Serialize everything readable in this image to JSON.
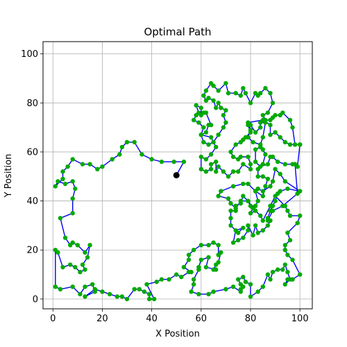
{
  "chart_data": {
    "type": "line",
    "title": "Optimal Path",
    "xlabel": "X Position",
    "ylabel": "Y Position",
    "xlim": [
      -4,
      105
    ],
    "ylim": [
      -4,
      105
    ],
    "xticks": [
      0,
      20,
      40,
      60,
      80,
      100
    ],
    "yticks": [
      0,
      20,
      40,
      60,
      80,
      100
    ],
    "grid": true,
    "colors": {
      "path": "#0000ee",
      "points": "#00aa00",
      "grid": "#b0b0b0",
      "start": "#000000"
    },
    "start_point": [
      50,
      50.5
    ],
    "path": [
      [
        50,
        50.5
      ],
      [
        53,
        56
      ],
      [
        49,
        56
      ],
      [
        44,
        56
      ],
      [
        40,
        57
      ],
      [
        36,
        59
      ],
      [
        33,
        64
      ],
      [
        30,
        64
      ],
      [
        28,
        62
      ],
      [
        27,
        59
      ],
      [
        24,
        57
      ],
      [
        20,
        54
      ],
      [
        18,
        53
      ],
      [
        15,
        55
      ],
      [
        12,
        55
      ],
      [
        8,
        57
      ],
      [
        6,
        54
      ],
      [
        4,
        52
      ],
      [
        4,
        49
      ],
      [
        1,
        46
      ],
      [
        2,
        48
      ],
      [
        5,
        47
      ],
      [
        8,
        48
      ],
      [
        9,
        45
      ],
      [
        8,
        41
      ],
      [
        8,
        35
      ],
      [
        3,
        33
      ],
      [
        5,
        25
      ],
      [
        7,
        22
      ],
      [
        8,
        23
      ],
      [
        10,
        22
      ],
      [
        13,
        19
      ],
      [
        15,
        22
      ],
      [
        14,
        17
      ],
      [
        12,
        14
      ],
      [
        13,
        12
      ],
      [
        11,
        11
      ],
      [
        9,
        13
      ],
      [
        7,
        14
      ],
      [
        4,
        13
      ],
      [
        2,
        19
      ],
      [
        1,
        20
      ],
      [
        1,
        5
      ],
      [
        3,
        4
      ],
      [
        8,
        5
      ],
      [
        11,
        2
      ],
      [
        13,
        5
      ],
      [
        16,
        6
      ],
      [
        17,
        3
      ],
      [
        13,
        1
      ],
      [
        17,
        4
      ],
      [
        20,
        3
      ],
      [
        23,
        2
      ],
      [
        26,
        1
      ],
      [
        28,
        1
      ],
      [
        30,
        0
      ],
      [
        33,
        4
      ],
      [
        35,
        4
      ],
      [
        37,
        3
      ],
      [
        39,
        2
      ],
      [
        39,
        0
      ],
      [
        41,
        0
      ],
      [
        38,
        6
      ],
      [
        42,
        7
      ],
      [
        44,
        8
      ],
      [
        47,
        8
      ],
      [
        50,
        10
      ],
      [
        52,
        9
      ],
      [
        55,
        11
      ],
      [
        56,
        11
      ],
      [
        53,
        13
      ],
      [
        55,
        16
      ],
      [
        55,
        18
      ],
      [
        57,
        20
      ],
      [
        60,
        22
      ],
      [
        63,
        22
      ],
      [
        65,
        23
      ],
      [
        67,
        22
      ],
      [
        67,
        18
      ],
      [
        68,
        19
      ],
      [
        67,
        15
      ],
      [
        66,
        14
      ],
      [
        65,
        12
      ],
      [
        66,
        12
      ],
      [
        62,
        13
      ],
      [
        63,
        17
      ],
      [
        60,
        16
      ],
      [
        59,
        13
      ],
      [
        59,
        12
      ],
      [
        57,
        8
      ],
      [
        57,
        6
      ],
      [
        56,
        3
      ],
      [
        59,
        2
      ],
      [
        63,
        2
      ],
      [
        65,
        3
      ],
      [
        70,
        4
      ],
      [
        73,
        5
      ],
      [
        76,
        3
      ],
      [
        76,
        4
      ],
      [
        77,
        5
      ],
      [
        76,
        6
      ],
      [
        75,
        8
      ],
      [
        77,
        9
      ],
      [
        78,
        7
      ],
      [
        80,
        6
      ],
      [
        80,
        1
      ],
      [
        83,
        3
      ],
      [
        85,
        5
      ],
      [
        87,
        10
      ],
      [
        88,
        8
      ],
      [
        89,
        11
      ],
      [
        91,
        12
      ],
      [
        93,
        12
      ],
      [
        94,
        14
      ],
      [
        95,
        11
      ],
      [
        96,
        8
      ],
      [
        94,
        6
      ],
      [
        95,
        8
      ],
      [
        97,
        8
      ],
      [
        100,
        10
      ],
      [
        97,
        16
      ],
      [
        95,
        18
      ],
      [
        94,
        20
      ],
      [
        94,
        22
      ],
      [
        96,
        24
      ],
      [
        95,
        27
      ],
      [
        99,
        31
      ],
      [
        100,
        34
      ],
      [
        96,
        34
      ],
      [
        95,
        36
      ],
      [
        94,
        38
      ],
      [
        90,
        42
      ],
      [
        88,
        38
      ],
      [
        85,
        32
      ],
      [
        84,
        34
      ],
      [
        82,
        36
      ],
      [
        80,
        35
      ],
      [
        81,
        37
      ],
      [
        79,
        40
      ],
      [
        77,
        42
      ],
      [
        76,
        39
      ],
      [
        74,
        38
      ],
      [
        74,
        36
      ],
      [
        72,
        36
      ],
      [
        72,
        33
      ],
      [
        72,
        30
      ],
      [
        75,
        27
      ],
      [
        77,
        29
      ],
      [
        74,
        28
      ],
      [
        73,
        23
      ],
      [
        75,
        24
      ],
      [
        77,
        25
      ],
      [
        79,
        28
      ],
      [
        79,
        30
      ],
      [
        81,
        26
      ],
      [
        82,
        30
      ],
      [
        83,
        27
      ],
      [
        85,
        28
      ],
      [
        87,
        30
      ],
      [
        88,
        32
      ],
      [
        87,
        33
      ],
      [
        88,
        36
      ],
      [
        89,
        38
      ],
      [
        90,
        40
      ],
      [
        91,
        43
      ],
      [
        92,
        44
      ],
      [
        95,
        45
      ],
      [
        100,
        44
      ],
      [
        94,
        48
      ],
      [
        92,
        51
      ],
      [
        90,
        53
      ],
      [
        89,
        48
      ],
      [
        88,
        46
      ],
      [
        85,
        44
      ],
      [
        83,
        45
      ],
      [
        82,
        44
      ],
      [
        83,
        40
      ],
      [
        82,
        38
      ],
      [
        80,
        38
      ],
      [
        79,
        40
      ],
      [
        76,
        40
      ],
      [
        74,
        37
      ],
      [
        72,
        39
      ],
      [
        71,
        41
      ],
      [
        67,
        42
      ],
      [
        68,
        44
      ],
      [
        73,
        46
      ],
      [
        77,
        47
      ],
      [
        79,
        47
      ],
      [
        82,
        44
      ],
      [
        85,
        42
      ],
      [
        86,
        46
      ],
      [
        87,
        49
      ],
      [
        85,
        50
      ],
      [
        83,
        50
      ],
      [
        83,
        53
      ],
      [
        85,
        55
      ],
      [
        86,
        59
      ],
      [
        85,
        61
      ],
      [
        84,
        62
      ],
      [
        82,
        61
      ],
      [
        82,
        56
      ],
      [
        84,
        54
      ],
      [
        87,
        55
      ],
      [
        88,
        58
      ],
      [
        89,
        58
      ],
      [
        91,
        56
      ],
      [
        94,
        55
      ],
      [
        97,
        55
      ],
      [
        99,
        54
      ],
      [
        100,
        63
      ],
      [
        98,
        63
      ],
      [
        97,
        70
      ],
      [
        96,
        73
      ],
      [
        93,
        76
      ],
      [
        92,
        75
      ],
      [
        90,
        75
      ],
      [
        89,
        74
      ],
      [
        88,
        73
      ],
      [
        86,
        73
      ],
      [
        85,
        75
      ],
      [
        87,
        76
      ],
      [
        89,
        80
      ],
      [
        88,
        84
      ],
      [
        86,
        86
      ],
      [
        84,
        84
      ],
      [
        83,
        83
      ],
      [
        82,
        84
      ],
      [
        80,
        80
      ],
      [
        78,
        84
      ],
      [
        77,
        86
      ],
      [
        76,
        83
      ],
      [
        74,
        84
      ],
      [
        71,
        84
      ],
      [
        70,
        88
      ],
      [
        67,
        85
      ],
      [
        65,
        87
      ],
      [
        64,
        88
      ],
      [
        62,
        85
      ],
      [
        61,
        83
      ],
      [
        62,
        81
      ],
      [
        63,
        82
      ],
      [
        65,
        81
      ],
      [
        66,
        78
      ],
      [
        67,
        80
      ],
      [
        68,
        78
      ],
      [
        70,
        77
      ],
      [
        69,
        75
      ],
      [
        70,
        72
      ],
      [
        69,
        70
      ],
      [
        67,
        67
      ],
      [
        65,
        64
      ],
      [
        63,
        63
      ],
      [
        61,
        64
      ],
      [
        60,
        67
      ],
      [
        61,
        70
      ],
      [
        59,
        72
      ],
      [
        57,
        73
      ],
      [
        58,
        75
      ],
      [
        59,
        76
      ],
      [
        58,
        79
      ],
      [
        60,
        78
      ],
      [
        60,
        75
      ],
      [
        61,
        76
      ],
      [
        62,
        76
      ],
      [
        64,
        71
      ],
      [
        63,
        71
      ],
      [
        62,
        68
      ],
      [
        60,
        67
      ],
      [
        64,
        66
      ],
      [
        66,
        62
      ],
      [
        64,
        59
      ],
      [
        62,
        57
      ],
      [
        60,
        58
      ],
      [
        60,
        53
      ],
      [
        62,
        52
      ],
      [
        64,
        53
      ],
      [
        64,
        55
      ],
      [
        66,
        56
      ],
      [
        66,
        52
      ],
      [
        67,
        54
      ],
      [
        69,
        52
      ],
      [
        71,
        50
      ],
      [
        73,
        52
      ],
      [
        75,
        52
      ],
      [
        77,
        55
      ],
      [
        80,
        53
      ],
      [
        80,
        55
      ],
      [
        79,
        58
      ],
      [
        76,
        58
      ],
      [
        75,
        57
      ],
      [
        73,
        58
      ],
      [
        72,
        60
      ],
      [
        74,
        63
      ],
      [
        76,
        64
      ],
      [
        78,
        66
      ],
      [
        77,
        65
      ],
      [
        80,
        68
      ],
      [
        79,
        71
      ],
      [
        80,
        71
      ],
      [
        82,
        68
      ],
      [
        84,
        70
      ],
      [
        84,
        72
      ],
      [
        86,
        72
      ],
      [
        85,
        66
      ],
      [
        84,
        63
      ],
      [
        81,
        64
      ],
      [
        79,
        66
      ],
      [
        80,
        69
      ],
      [
        79,
        72
      ],
      [
        85,
        73
      ],
      [
        88,
        71
      ],
      [
        88,
        67
      ],
      [
        90,
        68
      ],
      [
        92,
        66
      ],
      [
        94,
        64
      ],
      [
        96,
        63
      ],
      [
        98,
        63
      ],
      [
        100,
        63
      ],
      [
        99,
        54
      ],
      [
        98,
        55
      ],
      [
        99,
        43
      ],
      [
        93,
        38
      ],
      [
        89,
        36
      ],
      [
        87,
        32
      ]
    ]
  }
}
